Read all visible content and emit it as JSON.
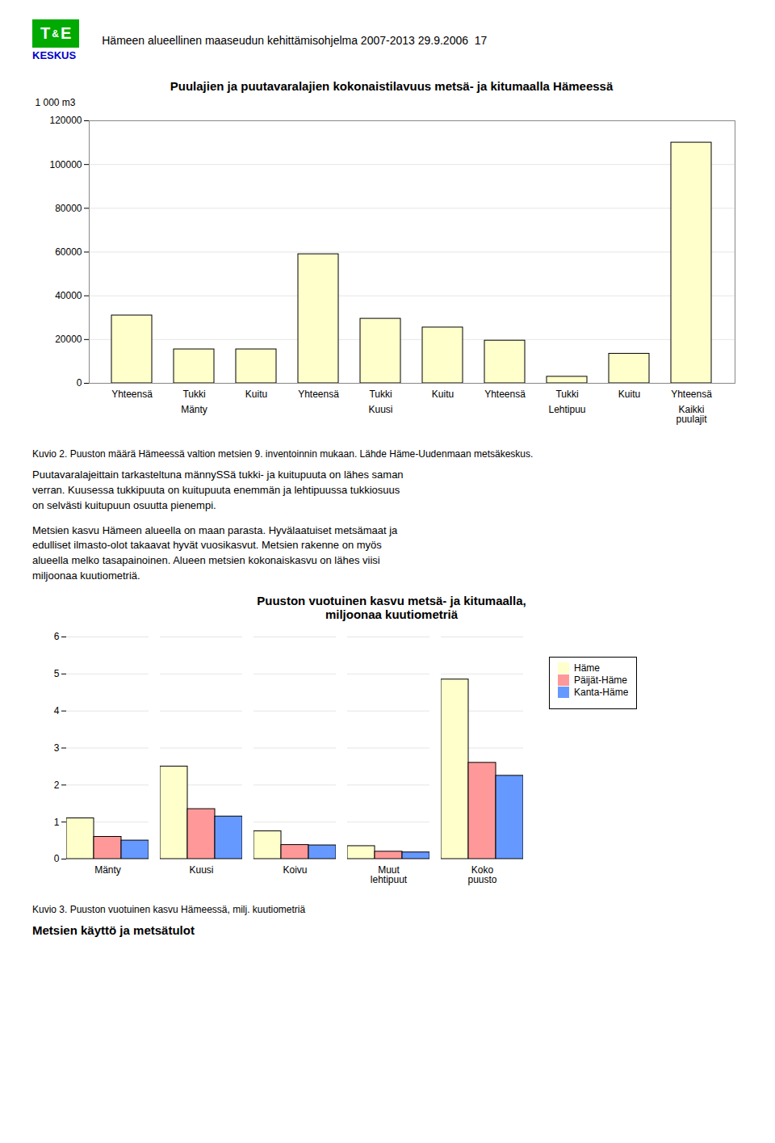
{
  "header": {
    "logo": [
      "T",
      "&",
      "E"
    ],
    "logo_color": "#00aa00",
    "logo_caption": "KESKUS",
    "logo_caption_color": "#0000cc",
    "text": "Hämeen alueellinen maaseudun kehittämisohjelma 2007-2013 29.9.2006  17"
  },
  "chart_data": [
    {
      "type": "bar",
      "title": "Puulajien ja puutavaralajien kokonaistilavuus metsä- ja kitumaalla Hämeessä",
      "ylabel": "1 000 m3",
      "categories": [
        "Yhteensä",
        "Tukki",
        "Kuitu",
        "Yhteensä",
        "Tukki",
        "Kuitu",
        "Yhteensä",
        "Tukki",
        "Kuitu",
        "Yhteensä"
      ],
      "groups": [
        "Mänty",
        "Mänty",
        "Mänty",
        "Kuusi",
        "Kuusi",
        "Kuusi",
        "Lehtipuu",
        "Lehtipuu",
        "Lehtipuu",
        "Kaikki\npuulajit"
      ],
      "values": [
        31000,
        15500,
        15500,
        59000,
        29500,
        25500,
        19500,
        3000,
        13500,
        110000
      ],
      "color": "#ffffcc",
      "ylim": [
        0,
        120000
      ],
      "yticks": [
        0,
        20000,
        40000,
        60000,
        80000,
        100000,
        120000
      ],
      "grid": true,
      "caption": "Kuvio 2. Puuston määrä Hämeessä valtion metsien 9. inventoinnin mukaan. Lähde Häme-Uudenmaan metsäkeskus."
    },
    {
      "type": "bar",
      "title": "Puuston vuotuinen kasvu metsä- ja kitumaalla,\nmiljoonaa kuutiometriä",
      "categories": [
        "Mänty",
        "Kuusi",
        "Koivu",
        "Muut\nlehtipuut",
        "Koko\npuusto"
      ],
      "series": [
        {
          "name": "Häme",
          "color": "#ffffcc",
          "values": [
            1.1,
            2.5,
            0.75,
            0.35,
            4.85
          ]
        },
        {
          "name": "Päijät-Häme",
          "color": "#ff9999",
          "values": [
            0.6,
            1.35,
            0.38,
            0.2,
            2.6
          ]
        },
        {
          "name": "Kanta-Häme",
          "color": "#6699ff",
          "values": [
            0.5,
            1.15,
            0.37,
            0.18,
            2.25
          ]
        }
      ],
      "ylim": [
        0,
        6
      ],
      "yticks": [
        0,
        1,
        2,
        3,
        4,
        5,
        6
      ],
      "grid": true,
      "legend": "right",
      "caption": "Kuvio 3. Puuston vuotuinen kasvu Hämeessä, milj. kuutiometriä"
    }
  ],
  "paragraphs": [
    [
      "Puutavaralajeittain tarkasteltuna männySSä tukki- ja kuitupuuta on lähes saman",
      "verran. Kuusessa tukkipuuta on kuitupuuta enemmän ja lehtipuussa tukkiosuus",
      "on selvästi kuitupuun osuutta pienempi."
    ],
    [
      "Metsien kasvu Hämeen alueella on maan parasta. Hyvälaatuiset metsämaat ja",
      "edulliset ilmasto-olot takaavat hyvät vuosikasvut. Metsien rakenne on myös",
      "alueella melko tasapainoinen. Alueen metsien kokonaiskasvu on lähes viisi",
      "miljoonaa kuutiometriä."
    ]
  ],
  "heading": "Metsien käyttö ja metsätulot"
}
